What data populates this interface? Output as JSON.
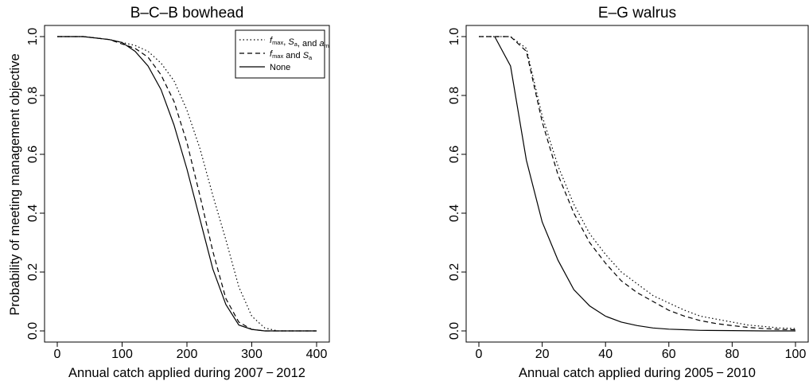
{
  "chart_data": [
    {
      "type": "line",
      "title": "B–C–B bowhead",
      "xlabel": "Annual catch applied during 2007 − 2012",
      "ylabel": "Probability of meeting management objective",
      "xlim": [
        0,
        400
      ],
      "ylim": [
        0,
        1
      ],
      "xticks": [
        "0",
        "100",
        "200",
        "300",
        "400"
      ],
      "yticks": [
        "0.0",
        "0.2",
        "0.4",
        "0.6",
        "0.8",
        "1.0"
      ],
      "legend_position": "top-right",
      "series": [
        {
          "name": "fmax, Sa, and am",
          "style": "dotted",
          "x": [
            0,
            40,
            80,
            120,
            140,
            160,
            180,
            200,
            220,
            240,
            260,
            280,
            300,
            320,
            340,
            350,
            400
          ],
          "y": [
            1.0,
            1.0,
            0.99,
            0.97,
            0.95,
            0.91,
            0.85,
            0.75,
            0.62,
            0.46,
            0.31,
            0.15,
            0.05,
            0.01,
            0.0,
            0.0,
            0.0
          ]
        },
        {
          "name": "fmax and Sa",
          "style": "dashed",
          "x": [
            0,
            40,
            80,
            120,
            140,
            160,
            180,
            200,
            220,
            240,
            260,
            280,
            300,
            320,
            340,
            400
          ],
          "y": [
            1.0,
            1.0,
            0.99,
            0.96,
            0.93,
            0.87,
            0.78,
            0.64,
            0.46,
            0.27,
            0.11,
            0.03,
            0.005,
            0.0,
            0.0,
            0.0
          ]
        },
        {
          "name": "None",
          "style": "solid",
          "x": [
            0,
            40,
            80,
            100,
            120,
            140,
            160,
            180,
            200,
            220,
            240,
            260,
            280,
            300,
            320,
            340,
            400
          ],
          "y": [
            1.0,
            1.0,
            0.99,
            0.98,
            0.95,
            0.9,
            0.82,
            0.7,
            0.55,
            0.38,
            0.21,
            0.09,
            0.02,
            0.005,
            0.0,
            0.0,
            0.0
          ]
        }
      ]
    },
    {
      "type": "line",
      "title": "E–G walrus",
      "xlabel": "Annual catch applied during 2005 − 2010",
      "ylabel": "",
      "xlim": [
        0,
        100
      ],
      "ylim": [
        0,
        1
      ],
      "xticks": [
        "0",
        "20",
        "40",
        "60",
        "80",
        "100"
      ],
      "yticks": [
        "0.0",
        "0.2",
        "0.4",
        "0.6",
        "0.8",
        "1.0"
      ],
      "series": [
        {
          "name": "fmax, Sa, and am",
          "style": "dotted",
          "x": [
            0,
            5,
            10,
            15,
            20,
            25,
            30,
            35,
            40,
            45,
            50,
            55,
            60,
            65,
            70,
            75,
            80,
            85,
            90,
            95,
            100
          ],
          "y": [
            1.0,
            1.0,
            1.0,
            0.96,
            0.73,
            0.56,
            0.43,
            0.33,
            0.26,
            0.2,
            0.16,
            0.12,
            0.095,
            0.07,
            0.05,
            0.04,
            0.03,
            0.02,
            0.015,
            0.01,
            0.008
          ]
        },
        {
          "name": "fmax and Sa",
          "style": "dashed",
          "x": [
            0,
            5,
            10,
            15,
            20,
            25,
            30,
            35,
            40,
            45,
            50,
            55,
            60,
            65,
            70,
            75,
            80,
            85,
            90,
            95,
            100
          ],
          "y": [
            1.0,
            1.0,
            1.0,
            0.95,
            0.71,
            0.53,
            0.4,
            0.3,
            0.23,
            0.17,
            0.13,
            0.1,
            0.07,
            0.05,
            0.035,
            0.025,
            0.018,
            0.012,
            0.008,
            0.005,
            0.004
          ]
        },
        {
          "name": "None",
          "style": "solid",
          "x": [
            5,
            10,
            15,
            20,
            25,
            30,
            35,
            40,
            45,
            50,
            55,
            60,
            65,
            70,
            80,
            90,
            100
          ],
          "y": [
            1.0,
            0.9,
            0.58,
            0.37,
            0.24,
            0.14,
            0.085,
            0.05,
            0.03,
            0.018,
            0.01,
            0.006,
            0.004,
            0.002,
            0.001,
            0.0,
            0.0
          ]
        }
      ]
    }
  ],
  "legend": {
    "entries": [
      {
        "parts": [
          [
            "i",
            "f"
          ],
          [
            "sub",
            "max"
          ],
          [
            "n",
            ", "
          ],
          [
            "i",
            "S"
          ],
          [
            "sub",
            "a"
          ],
          [
            "n",
            ", and "
          ],
          [
            "i",
            "a"
          ],
          [
            "sub",
            "m"
          ]
        ],
        "style": "dotted"
      },
      {
        "parts": [
          [
            "i",
            "f"
          ],
          [
            "sub",
            "max"
          ],
          [
            "n",
            " and "
          ],
          [
            "i",
            "S"
          ],
          [
            "sub",
            "a"
          ]
        ],
        "style": "dashed"
      },
      {
        "parts": [
          [
            "n",
            "None"
          ]
        ],
        "style": "solid"
      }
    ]
  }
}
